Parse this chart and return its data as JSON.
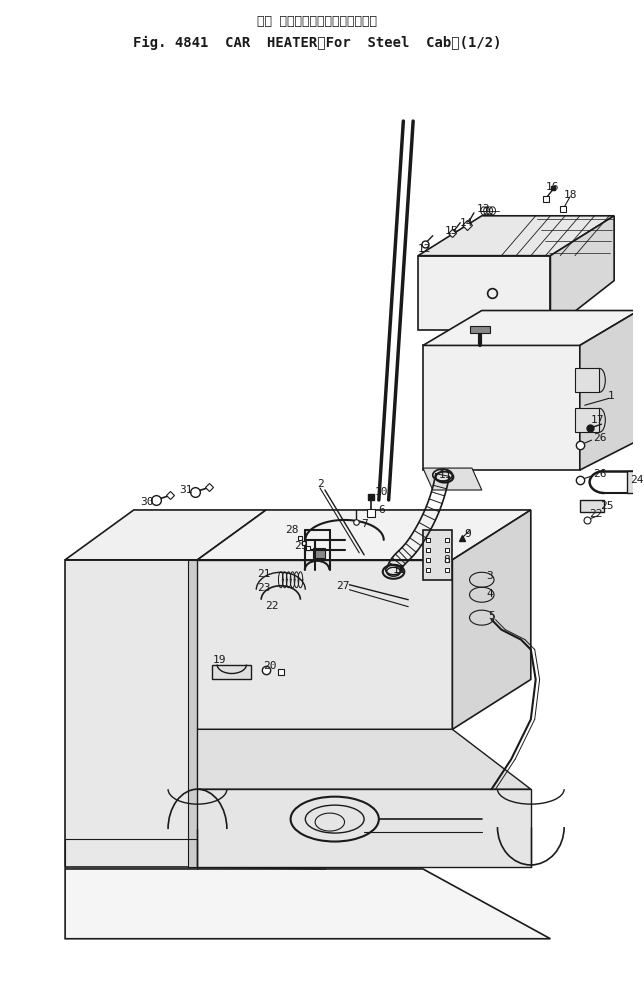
{
  "title_line1": "カー ヒータ（スチールキャブ用）",
  "title_line2": "Fig. 4841  CAR  HEATER（For  Steel  Cab）(1/2)",
  "bg_color": "#ffffff",
  "lc": "#1a1a1a",
  "fig_width": 6.44,
  "fig_height": 9.91,
  "dpi": 100
}
